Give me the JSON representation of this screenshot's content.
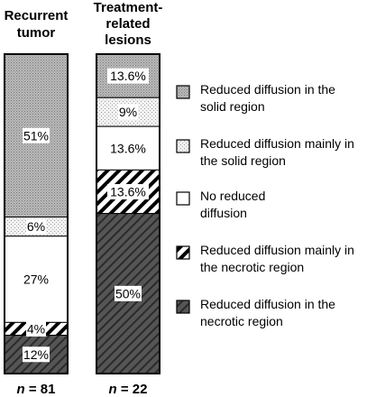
{
  "chart_data": {
    "type": "bar",
    "stacked": true,
    "normalized_percent": true,
    "categories": [
      "Recurrent tumor",
      "Treatment-related lesions"
    ],
    "category_title_lines": [
      [
        "Recurrent",
        "tumor"
      ],
      [
        "Treatment-",
        "related",
        "lesions"
      ]
    ],
    "n_labels": [
      {
        "prefix": "n",
        "text": " = 81"
      },
      {
        "prefix": "n",
        "text": " = 22"
      }
    ],
    "series": [
      {
        "name": "Reduced diffusion in the solid region",
        "name_lines": [
          "Reduced diffusion in the",
          "solid region"
        ],
        "pattern": "dense-dots",
        "values": [
          51,
          13.6
        ],
        "labels": [
          "51%",
          "13.6%"
        ]
      },
      {
        "name": "Reduced diffusion mainly in the solid region",
        "name_lines": [
          "Reduced diffusion mainly in",
          "the solid region"
        ],
        "pattern": "light-dots",
        "values": [
          6,
          9
        ],
        "labels": [
          "6%",
          "9%"
        ]
      },
      {
        "name": "No reduced diffusion",
        "name_lines": [
          "No reduced",
          "diffusion"
        ],
        "pattern": "none",
        "values": [
          27,
          13.6
        ],
        "labels": [
          "27%",
          "13.6%"
        ]
      },
      {
        "name": "Reduced diffusion mainly in the necrotic region",
        "name_lines": [
          "Reduced diffusion mainly in",
          "the necrotic region"
        ],
        "pattern": "light-hatch",
        "values": [
          4,
          13.6
        ],
        "labels": [
          "4%",
          "13.6%"
        ]
      },
      {
        "name": "Reduced diffusion in the necrotic region",
        "name_lines": [
          "Reduced diffusion in the",
          "necrotic region"
        ],
        "pattern": "dark-hatch",
        "values": [
          12,
          50
        ],
        "labels": [
          "12%",
          "50%"
        ]
      }
    ],
    "colors": {
      "dense_dots_bg": "#b9b9b9",
      "light_dots_bg": "#f0f0f0",
      "dark_hatch_bg": "#555555",
      "stroke": "#000000"
    },
    "legend_position": "right",
    "grid": false
  }
}
